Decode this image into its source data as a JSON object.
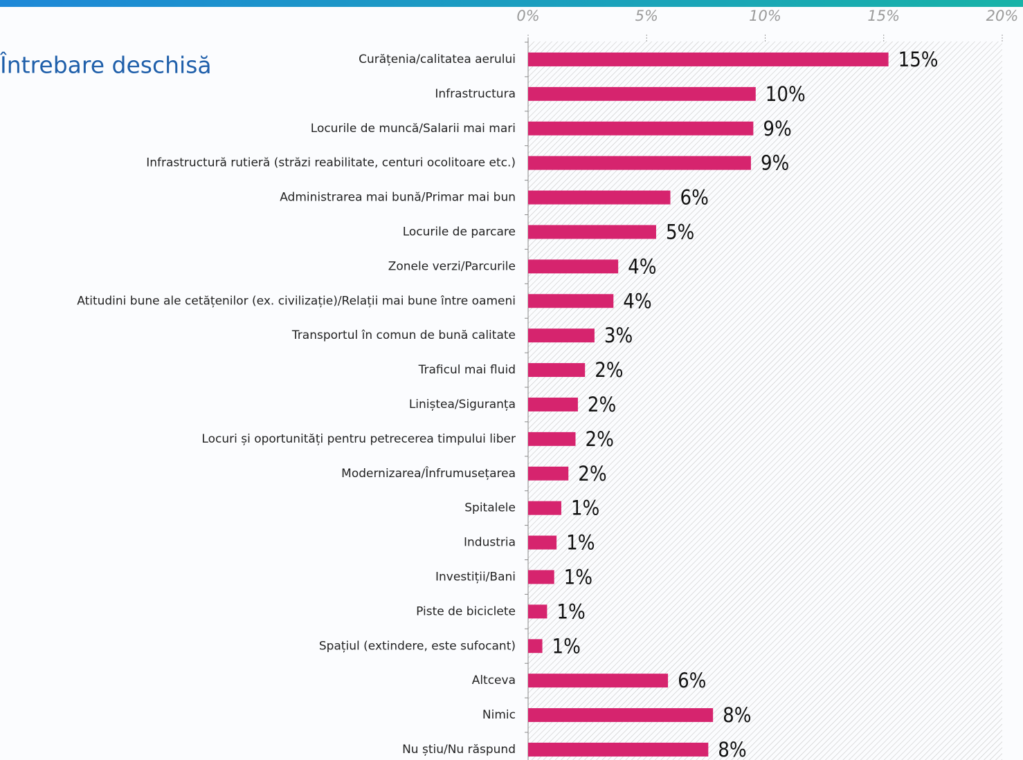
{
  "chart_data": {
    "type": "bar",
    "orientation": "horizontal",
    "title": "Întrebare deschisă",
    "categories": [
      "Curățenia/calitatea aerului",
      "Infrastructura",
      "Locurile de muncă/Salarii mai mari",
      "Infrastructură rutieră (străzi reabilitate, centuri ocolitoare etc.)",
      "Administrarea mai bună/Primar mai bun",
      "Locurile de parcare",
      "Zonele verzi/Parcurile",
      "Atitudini bune ale cetățenilor (ex. civilizație)/Relații mai bune între oameni",
      "Transportul în comun de bună calitate",
      "Traficul mai fluid",
      "Liniștea/Siguranța",
      "Locuri și oportunități pentru petrecerea timpului liber",
      "Modernizarea/Înfrumusețarea",
      "Spitalele",
      "Industria",
      "Investiții/Bani",
      "Piste de biciclete",
      "Spațiul (extindere, este sufocant)",
      "Altceva",
      "Nimic",
      "Nu știu/Nu răspund"
    ],
    "values": [
      15.2,
      9.6,
      9.5,
      9.4,
      6.0,
      5.4,
      3.8,
      3.6,
      2.8,
      2.4,
      2.1,
      2.0,
      1.7,
      1.4,
      1.2,
      1.1,
      0.8,
      0.6,
      5.9,
      7.8,
      7.6
    ],
    "value_labels": [
      "15%",
      "10%",
      "9%",
      "9%",
      "6%",
      "5%",
      "4%",
      "4%",
      "3%",
      "2%",
      "2%",
      "2%",
      "2%",
      "1%",
      "1%",
      "1%",
      "1%",
      "1%",
      "6%",
      "8%",
      "8%"
    ],
    "color": "#d6246e",
    "xlim": [
      0,
      20
    ],
    "xticks": [
      {
        "value": 0,
        "label": "0%"
      },
      {
        "value": 5,
        "label": "5%"
      },
      {
        "value": 10,
        "label": "10%"
      },
      {
        "value": 15,
        "label": "15%"
      },
      {
        "value": 20,
        "label": "20%"
      }
    ],
    "grid": false
  }
}
